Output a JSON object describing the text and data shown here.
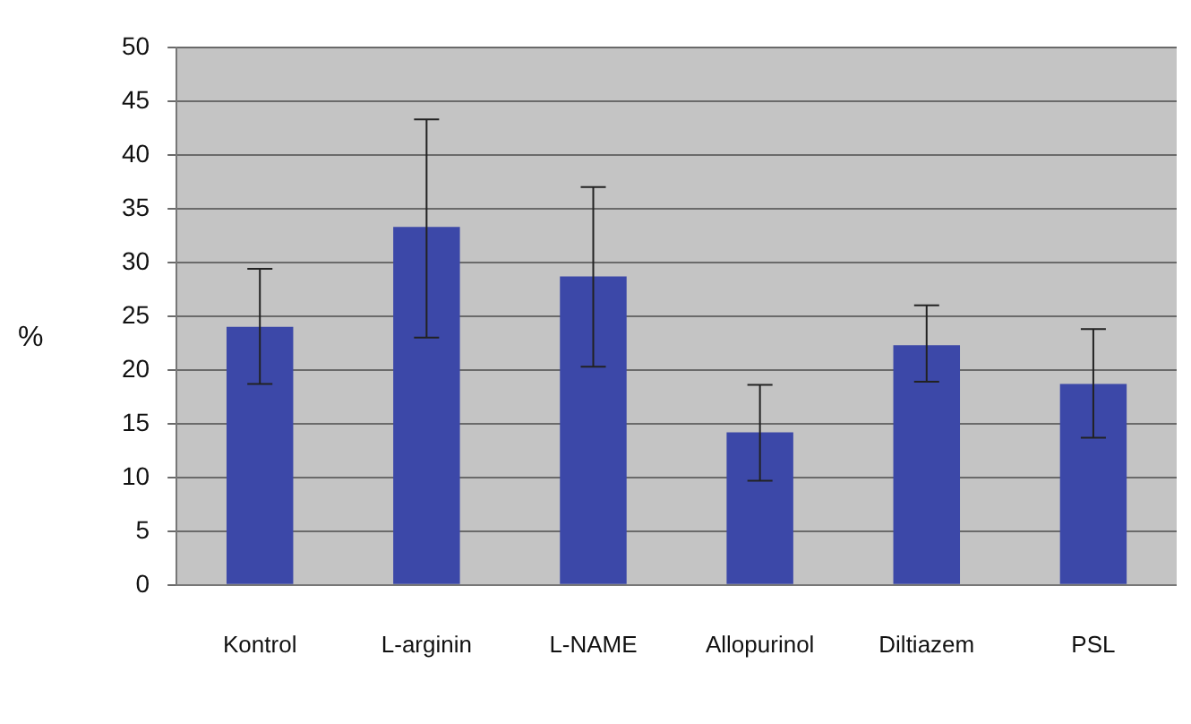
{
  "chart_data": {
    "type": "bar",
    "ylabel": "%",
    "categories": [
      "Kontrol",
      "L-arginin",
      "L-NAME",
      "Allopurinol",
      "Diltiazem",
      "PSL"
    ],
    "values": [
      24,
      33.3,
      28.7,
      14.2,
      22.3,
      18.7
    ],
    "errors": [
      [
        18.7,
        29.4
      ],
      [
        23,
        43.3
      ],
      [
        20.3,
        37
      ],
      [
        9.7,
        18.6
      ],
      [
        18.9,
        26
      ],
      [
        13.7,
        23.8
      ]
    ],
    "color": "#3c48a8",
    "ylim": [
      0,
      50
    ],
    "yticks": [
      0,
      5,
      10,
      15,
      20,
      25,
      30,
      35,
      40,
      45,
      50
    ],
    "grid": "y",
    "legend": false
  }
}
